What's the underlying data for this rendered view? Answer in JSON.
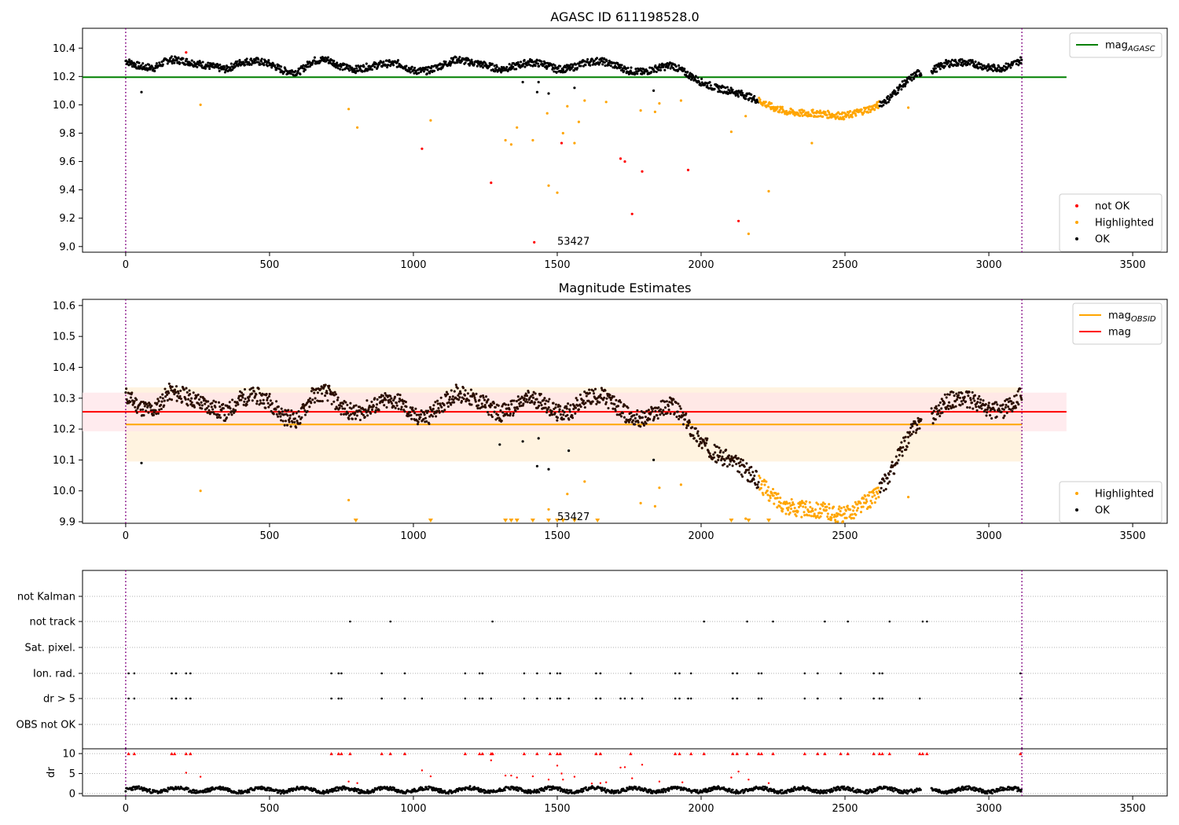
{
  "colors": {
    "ok": "#000000",
    "not_ok": "#ff0000",
    "highlighted": "#ffa500",
    "agasc_line": "#008000",
    "obs_line": "#ffa500",
    "mag_line": "#ff0000",
    "boundary": "#800080",
    "obs_band": "#fff3e0",
    "mag_band": "#ffe4e8"
  },
  "chart_data": [
    {
      "type": "scatter",
      "title": "AGASC ID 611198528.0",
      "xlim": [
        -150,
        3620
      ],
      "ylim": [
        8.96,
        10.54
      ],
      "xticks": [
        0,
        500,
        1000,
        1500,
        2000,
        2500,
        3000,
        3500
      ],
      "yticks": [
        9.0,
        9.2,
        9.4,
        9.6,
        9.8,
        10.0,
        10.2,
        10.4
      ],
      "ytick_labels": [
        "9.0",
        "9.2",
        "9.4",
        "9.6",
        "9.8",
        "10.0",
        "10.2",
        "10.4"
      ],
      "grid": false,
      "hline": {
        "name": "mag_AGASC",
        "label_main": "mag",
        "label_sub": "AGASC",
        "y": 10.195,
        "x": [
          -150,
          3270
        ]
      },
      "vlines": [
        0,
        3115
      ],
      "annotation": {
        "text": "53427",
        "x": 1500,
        "y": 9.035
      },
      "legends": [
        {
          "position": "top-right",
          "entries": [
            {
              "kind": "line",
              "color_key": "agasc_line",
              "main": "mag",
              "sub": "AGASC"
            }
          ]
        },
        {
          "position": "bottom-right",
          "entries": [
            {
              "kind": "dot",
              "color_key": "not_ok",
              "main": "not OK",
              "sub": ""
            },
            {
              "kind": "dot",
              "color_key": "highlighted",
              "main": "Highlighted",
              "sub": ""
            },
            {
              "kind": "dot",
              "color_key": "ok",
              "main": "OK",
              "sub": ""
            }
          ]
        }
      ],
      "baseline": [
        [
          0,
          10.31
        ],
        [
          50,
          10.27
        ],
        [
          100,
          10.26
        ],
        [
          150,
          10.32
        ],
        [
          200,
          10.31
        ],
        [
          300,
          10.27
        ],
        [
          350,
          10.25
        ],
        [
          400,
          10.3
        ],
        [
          450,
          10.31
        ],
        [
          500,
          10.29
        ],
        [
          550,
          10.24
        ],
        [
          600,
          10.23
        ],
        [
          650,
          10.31
        ],
        [
          700,
          10.32
        ],
        [
          750,
          10.27
        ],
        [
          800,
          10.25
        ],
        [
          850,
          10.27
        ],
        [
          900,
          10.29
        ],
        [
          950,
          10.29
        ],
        [
          1000,
          10.24
        ],
        [
          1050,
          10.24
        ],
        [
          1100,
          10.28
        ],
        [
          1150,
          10.32
        ],
        [
          1200,
          10.3
        ],
        [
          1250,
          10.28
        ],
        [
          1300,
          10.25
        ],
        [
          1350,
          10.27
        ],
        [
          1400,
          10.3
        ],
        [
          1450,
          10.29
        ],
        [
          1500,
          10.25
        ],
        [
          1550,
          10.26
        ],
        [
          1600,
          10.3
        ],
        [
          1650,
          10.31
        ],
        [
          1700,
          10.28
        ],
        [
          1750,
          10.24
        ],
        [
          1800,
          10.23
        ],
        [
          1850,
          10.26
        ],
        [
          1900,
          10.28
        ],
        [
          1950,
          10.22
        ],
        [
          2000,
          10.16
        ],
        [
          2050,
          10.12
        ],
        [
          2100,
          10.1
        ],
        [
          2150,
          10.07
        ],
        [
          2200,
          10.03
        ],
        [
          2250,
          9.98
        ],
        [
          2300,
          9.95
        ],
        [
          2350,
          9.94
        ],
        [
          2400,
          9.94
        ],
        [
          2450,
          9.93
        ],
        [
          2500,
          9.92
        ],
        [
          2550,
          9.95
        ],
        [
          2600,
          9.98
        ],
        [
          2650,
          10.04
        ],
        [
          2700,
          10.14
        ],
        [
          2750,
          10.22
        ],
        [
          2800,
          10.24
        ],
        [
          2850,
          10.29
        ],
        [
          2900,
          10.3
        ],
        [
          2950,
          10.29
        ],
        [
          3000,
          10.26
        ],
        [
          3050,
          10.26
        ],
        [
          3100,
          10.3
        ],
        [
          3115,
          10.32
        ]
      ],
      "gaps": [
        [
          2765,
          2800
        ]
      ],
      "highlight_range": [
        2200,
        2620
      ],
      "not_ok_points": [
        [
          210,
          10.37
        ],
        [
          1030,
          9.69
        ],
        [
          1270,
          9.45
        ],
        [
          1420,
          9.03
        ],
        [
          1515,
          9.73
        ],
        [
          1720,
          9.62
        ],
        [
          1735,
          9.6
        ],
        [
          1760,
          9.23
        ],
        [
          1795,
          9.53
        ],
        [
          1955,
          9.54
        ],
        [
          2130,
          9.18
        ]
      ],
      "highlighted_points": [
        [
          260,
          10.0
        ],
        [
          775,
          9.97
        ],
        [
          805,
          9.84
        ],
        [
          1060,
          9.89
        ],
        [
          1320,
          9.75
        ],
        [
          1340,
          9.72
        ],
        [
          1360,
          9.84
        ],
        [
          1415,
          9.75
        ],
        [
          1465,
          9.94
        ],
        [
          1470,
          9.43
        ],
        [
          1500,
          9.38
        ],
        [
          1520,
          9.8
        ],
        [
          1535,
          9.99
        ],
        [
          1560,
          9.73
        ],
        [
          1575,
          9.88
        ],
        [
          1595,
          10.03
        ],
        [
          1670,
          10.02
        ],
        [
          1790,
          9.96
        ],
        [
          1840,
          9.95
        ],
        [
          1855,
          10.01
        ],
        [
          1930,
          10.03
        ],
        [
          2105,
          9.81
        ],
        [
          2155,
          9.92
        ],
        [
          2165,
          9.09
        ],
        [
          2235,
          9.39
        ],
        [
          2385,
          9.73
        ],
        [
          2720,
          9.98
        ]
      ],
      "ok_outliers": [
        [
          55,
          10.09
        ],
        [
          1380,
          10.16
        ],
        [
          1430,
          10.09
        ],
        [
          1435,
          10.16
        ],
        [
          1470,
          10.08
        ],
        [
          1560,
          10.12
        ],
        [
          1835,
          10.1
        ]
      ]
    },
    {
      "type": "scatter",
      "title": "Magnitude Estimates",
      "xlim": [
        -150,
        3620
      ],
      "ylim": [
        9.895,
        10.62
      ],
      "xticks": [
        0,
        500,
        1000,
        1500,
        2000,
        2500,
        3000,
        3500
      ],
      "yticks": [
        9.9,
        10.0,
        10.1,
        10.2,
        10.3,
        10.4,
        10.5,
        10.6
      ],
      "ytick_labels": [
        "9.9",
        "10.0",
        "10.1",
        "10.2",
        "10.3",
        "10.4",
        "10.5",
        "10.6"
      ],
      "grid": false,
      "bands": [
        {
          "color_key": "obs_band",
          "y": [
            10.095,
            10.335
          ],
          "x": [
            0,
            3115
          ]
        },
        {
          "color_key": "mag_band",
          "y": [
            10.193,
            10.318
          ],
          "x": [
            -150,
            3270
          ]
        }
      ],
      "hlines": [
        {
          "name": "mag_OBSID",
          "color_key": "obs_line",
          "y": 10.215,
          "x": [
            0,
            3115
          ]
        },
        {
          "name": "mag",
          "color_key": "mag_line",
          "y": 10.256,
          "x": [
            -150,
            3270
          ]
        }
      ],
      "vlines": [
        0,
        3115
      ],
      "annotation": {
        "text": "53427",
        "x": 1500,
        "y": 9.915
      },
      "legends": [
        {
          "position": "top-right",
          "entries": [
            {
              "kind": "line",
              "color_key": "obs_line",
              "main": "mag",
              "sub": "OBSID"
            },
            {
              "kind": "line",
              "color_key": "mag_line",
              "main": "mag",
              "sub": ""
            }
          ]
        },
        {
          "position": "bottom-right",
          "entries": [
            {
              "kind": "dot",
              "color_key": "highlighted",
              "main": "Highlighted",
              "sub": ""
            },
            {
              "kind": "dot",
              "color_key": "ok",
              "main": "OK",
              "sub": ""
            }
          ]
        }
      ],
      "highlighted_points": [
        [
          260,
          10.0
        ],
        [
          775,
          9.97
        ],
        [
          1595,
          10.03
        ],
        [
          1535,
          9.99
        ],
        [
          1790,
          9.96
        ],
        [
          1840,
          9.95
        ],
        [
          1855,
          10.01
        ],
        [
          1930,
          10.02
        ],
        [
          2720,
          9.98
        ],
        [
          1470,
          9.94
        ],
        [
          2155,
          9.91
        ]
      ],
      "ok_outliers": [
        [
          55,
          10.09
        ],
        [
          1380,
          10.16
        ],
        [
          1430,
          10.08
        ],
        [
          1435,
          10.17
        ],
        [
          1470,
          10.07
        ],
        [
          1540,
          10.13
        ],
        [
          1835,
          10.1
        ],
        [
          1300,
          10.15
        ]
      ],
      "clipped_markers_x": [
        800,
        1060,
        1320,
        1340,
        1360,
        1415,
        1470,
        1500,
        1520,
        1560,
        1640,
        2105,
        2165,
        2235
      ]
    },
    {
      "type": "scatter",
      "xlim": [
        -150,
        3620
      ],
      "xticks": [
        0,
        500,
        1000,
        1500,
        2000,
        2500,
        3000,
        3500
      ],
      "vlines": [
        0,
        3115
      ],
      "flag_rows": [
        "not Kalman",
        "not track",
        "Sat. pixel.",
        "Ion. rad.",
        "dr > 5",
        "OBS not OK"
      ],
      "flags": {
        "not track": [
          780,
          920,
          1275,
          2010,
          2160,
          2250,
          2430,
          2510,
          2655,
          2770,
          2785
        ],
        "Ion. rad.": [
          10,
          30,
          160,
          175,
          210,
          225,
          715,
          740,
          750,
          890,
          970,
          1180,
          1230,
          1240,
          1385,
          1430,
          1475,
          1500,
          1510,
          1635,
          1650,
          1755,
          1910,
          1925,
          1965,
          2110,
          2125,
          2200,
          2210,
          2360,
          2405,
          2485,
          2600,
          2620,
          2630,
          3110
        ],
        "dr > 5": [
          10,
          30,
          160,
          175,
          210,
          225,
          715,
          740,
          750,
          890,
          970,
          1030,
          1180,
          1230,
          1240,
          1270,
          1385,
          1430,
          1475,
          1500,
          1510,
          1540,
          1635,
          1650,
          1720,
          1735,
          1760,
          1795,
          1910,
          1925,
          1955,
          1965,
          2110,
          2125,
          2200,
          2210,
          2360,
          2405,
          2485,
          2600,
          2620,
          2630,
          2760,
          3110
        ]
      },
      "dr": {
        "ylabel": "dr",
        "ylim": [
          -0.6,
          11.2
        ],
        "yticks": [
          0,
          5,
          10
        ],
        "ytick_labels": [
          "0",
          "5",
          "10"
        ],
        "grid": true,
        "clipped_x": [
          10,
          30,
          160,
          170,
          210,
          225,
          715,
          740,
          750,
          780,
          890,
          920,
          970,
          1180,
          1230,
          1240,
          1270,
          1275,
          1385,
          1430,
          1475,
          1500,
          1510,
          1635,
          1650,
          1755,
          1910,
          1925,
          1965,
          2010,
          2110,
          2125,
          2160,
          2200,
          2210,
          2250,
          2360,
          2405,
          2430,
          2485,
          2510,
          2600,
          2620,
          2630,
          2655,
          2760,
          2770,
          2785,
          3110
        ],
        "outliers": [
          [
            210,
            5.2
          ],
          [
            260,
            4.2
          ],
          [
            775,
            3.0
          ],
          [
            805,
            2.6
          ],
          [
            1030,
            5.8
          ],
          [
            1060,
            4.3
          ],
          [
            1270,
            8.3
          ],
          [
            1320,
            4.5
          ],
          [
            1340,
            4.5
          ],
          [
            1360,
            4.0
          ],
          [
            1415,
            4.3
          ],
          [
            1470,
            3.5
          ],
          [
            1500,
            7.0
          ],
          [
            1515,
            5.0
          ],
          [
            1520,
            3.5
          ],
          [
            1560,
            4.2
          ],
          [
            1620,
            2.5
          ],
          [
            1650,
            2.6
          ],
          [
            1670,
            2.8
          ],
          [
            1720,
            6.5
          ],
          [
            1735,
            6.6
          ],
          [
            1760,
            3.8
          ],
          [
            1795,
            7.2
          ],
          [
            1855,
            3.0
          ],
          [
            1935,
            2.8
          ],
          [
            2105,
            4.0
          ],
          [
            2130,
            5.5
          ],
          [
            2165,
            3.5
          ],
          [
            2235,
            2.6
          ]
        ]
      }
    }
  ]
}
